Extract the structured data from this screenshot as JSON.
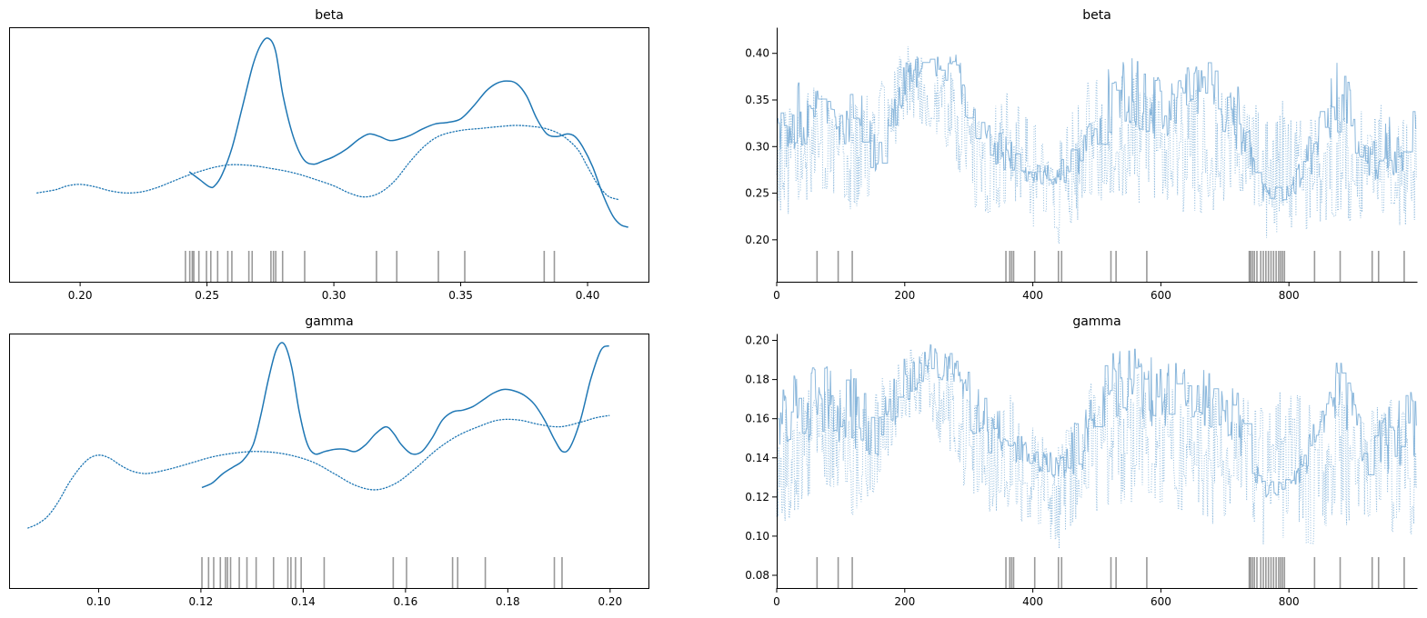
{
  "figure": {
    "type": "arviz trace plot",
    "background": "#ffffff",
    "density_color": "#1f77b4",
    "trace_color": "#7fb0d8",
    "rug_color": "#000000"
  },
  "chart_data": [
    {
      "type": "line",
      "panel": "kde-beta",
      "title": "beta",
      "xlabel": "",
      "ylabel": "",
      "xlim": [
        0.172,
        0.424
      ],
      "xticks": [
        0.2,
        0.25,
        0.3,
        0.35,
        0.4
      ],
      "xtick_labels": [
        "0.20",
        "0.25",
        "0.30",
        "0.35",
        "0.40"
      ],
      "yticks_visible": false,
      "grid": false,
      "legend": "none",
      "series": [
        {
          "style": "solid",
          "x": [
            0.243,
            0.247,
            0.251,
            0.253,
            0.256,
            0.26,
            0.264,
            0.268,
            0.271,
            0.274,
            0.277,
            0.28,
            0.284,
            0.288,
            0.292,
            0.296,
            0.3,
            0.305,
            0.31,
            0.314,
            0.318,
            0.322,
            0.326,
            0.33,
            0.335,
            0.34,
            0.345,
            0.35,
            0.355,
            0.36,
            0.364,
            0.368,
            0.372,
            0.376,
            0.38,
            0.384,
            0.388,
            0.392,
            0.395,
            0.398,
            0.402,
            0.406,
            0.41,
            0.413,
            0.416
          ],
          "y": [
            1.1,
            0.95,
            0.8,
            0.82,
            1.05,
            1.6,
            2.4,
            3.2,
            3.6,
            3.75,
            3.5,
            2.6,
            1.8,
            1.35,
            1.25,
            1.32,
            1.4,
            1.55,
            1.75,
            1.85,
            1.8,
            1.72,
            1.75,
            1.82,
            1.95,
            2.05,
            2.08,
            2.15,
            2.4,
            2.7,
            2.85,
            2.9,
            2.85,
            2.6,
            2.15,
            1.85,
            1.8,
            1.85,
            1.8,
            1.6,
            1.2,
            0.65,
            0.22,
            0.05,
            0.0
          ]
        },
        {
          "style": "dotted",
          "x": [
            0.183,
            0.19,
            0.195,
            0.2,
            0.206,
            0.212,
            0.218,
            0.224,
            0.23,
            0.236,
            0.242,
            0.248,
            0.254,
            0.26,
            0.268,
            0.276,
            0.284,
            0.292,
            0.3,
            0.306,
            0.312,
            0.318,
            0.324,
            0.33,
            0.336,
            0.342,
            0.35,
            0.358,
            0.366,
            0.372,
            0.378,
            0.384,
            0.39,
            0.396,
            0.4,
            0.404,
            0.408,
            0.412
          ],
          "y": [
            0.68,
            0.74,
            0.82,
            0.85,
            0.8,
            0.72,
            0.68,
            0.7,
            0.78,
            0.9,
            1.02,
            1.12,
            1.2,
            1.24,
            1.22,
            1.16,
            1.08,
            0.96,
            0.82,
            0.68,
            0.6,
            0.68,
            0.92,
            1.3,
            1.62,
            1.82,
            1.92,
            1.96,
            2.0,
            2.02,
            2.0,
            1.95,
            1.82,
            1.55,
            1.2,
            0.85,
            0.62,
            0.55
          ]
        }
      ],
      "rug_x": [
        0.2415,
        0.2432,
        0.2442,
        0.2448,
        0.2468,
        0.2498,
        0.2515,
        0.2542,
        0.2582,
        0.2598,
        0.2665,
        0.2678,
        0.2752,
        0.2762,
        0.2771,
        0.2798,
        0.2885,
        0.3168,
        0.3248,
        0.3412,
        0.3516,
        0.3829,
        0.3869
      ]
    },
    {
      "type": "line",
      "panel": "trace-beta",
      "title": "beta",
      "xlabel": "",
      "ylabel": "",
      "xlim": [
        0,
        1000
      ],
      "ylim": [
        0.155,
        0.428
      ],
      "xticks": [
        0,
        200,
        400,
        600,
        800
      ],
      "xtick_labels": [
        "0",
        "200",
        "400",
        "600",
        "800"
      ],
      "yticks": [
        0.2,
        0.25,
        0.3,
        0.35,
        0.4
      ],
      "ytick_labels": [
        "0.20",
        "0.25",
        "0.30",
        "0.35",
        "0.40"
      ],
      "grid": false,
      "legend": "none",
      "samples": 1000,
      "series": [
        {
          "style": "solid",
          "knots_x": [
            0,
            40,
            80,
            120,
            160,
            200,
            240,
            280,
            320,
            360,
            400,
            440,
            480,
            520,
            560,
            600,
            640,
            680,
            720,
            760,
            800,
            840,
            880,
            920,
            960,
            999
          ],
          "knots_y": [
            0.33,
            0.33,
            0.34,
            0.33,
            0.3,
            0.37,
            0.39,
            0.38,
            0.31,
            0.29,
            0.27,
            0.27,
            0.3,
            0.35,
            0.36,
            0.34,
            0.36,
            0.36,
            0.33,
            0.25,
            0.25,
            0.3,
            0.36,
            0.28,
            0.3,
            0.32
          ],
          "band": [
            0.035,
            0.04,
            0.04,
            0.04,
            0.03,
            0.02,
            0.015,
            0.02,
            0.035,
            0.02,
            0.01,
            0.01,
            0.035,
            0.04,
            0.04,
            0.035,
            0.03,
            0.03,
            0.035,
            0.01,
            0.008,
            0.03,
            0.04,
            0.02,
            0.035,
            0.035
          ],
          "min": 0.24,
          "max": 0.415
        },
        {
          "style": "dotted",
          "knots_x": [
            0,
            40,
            80,
            120,
            160,
            200,
            240,
            280,
            320,
            360,
            400,
            440,
            480,
            520,
            560,
            600,
            640,
            680,
            720,
            760,
            800,
            840,
            880,
            920,
            960,
            999
          ],
          "knots_y": [
            0.27,
            0.3,
            0.31,
            0.29,
            0.31,
            0.37,
            0.36,
            0.33,
            0.28,
            0.3,
            0.27,
            0.25,
            0.3,
            0.31,
            0.31,
            0.29,
            0.3,
            0.29,
            0.3,
            0.27,
            0.29,
            0.27,
            0.29,
            0.28,
            0.28,
            0.27
          ],
          "band": [
            0.06,
            0.06,
            0.06,
            0.06,
            0.06,
            0.04,
            0.04,
            0.05,
            0.06,
            0.06,
            0.06,
            0.06,
            0.07,
            0.07,
            0.07,
            0.07,
            0.07,
            0.07,
            0.06,
            0.07,
            0.08,
            0.07,
            0.07,
            0.06,
            0.07,
            0.07
          ],
          "min": 0.19,
          "max": 0.41
        }
      ],
      "rug_x": [
        63,
        96,
        118,
        358,
        364,
        367,
        370,
        403,
        440,
        445,
        522,
        530,
        578,
        738,
        740,
        743,
        746,
        750,
        756,
        760,
        764,
        768,
        772,
        776,
        780,
        784,
        787,
        790,
        793,
        840,
        880,
        930,
        940,
        980
      ]
    },
    {
      "type": "line",
      "panel": "kde-gamma",
      "title": "gamma",
      "xlabel": "",
      "ylabel": "",
      "xlim": [
        0.0825,
        0.2075
      ],
      "xticks": [
        0.1,
        0.12,
        0.14,
        0.16,
        0.18,
        0.2
      ],
      "xtick_labels": [
        "0.10",
        "0.12",
        "0.14",
        "0.16",
        "0.18",
        "0.20"
      ],
      "yticks_visible": false,
      "grid": false,
      "legend": "none",
      "series": [
        {
          "style": "solid",
          "x": [
            0.1202,
            0.1222,
            0.1242,
            0.1262,
            0.1282,
            0.1302,
            0.1317,
            0.1332,
            0.1347,
            0.1362,
            0.1377,
            0.1392,
            0.1407,
            0.1422,
            0.1442,
            0.1462,
            0.1482,
            0.1502,
            0.1522,
            0.1542,
            0.1562,
            0.1577,
            0.1592,
            0.1612,
            0.1632,
            0.1652,
            0.1672,
            0.1692,
            0.1712,
            0.1732,
            0.1752,
            0.1772,
            0.1792,
            0.1812,
            0.1832,
            0.1852,
            0.1872,
            0.1892,
            0.1907,
            0.1922,
            0.1942,
            0.1962,
            0.1982,
            0.1998
          ],
          "y": [
            0.9,
            1.0,
            1.2,
            1.35,
            1.5,
            1.85,
            2.5,
            3.3,
            3.95,
            4.1,
            3.6,
            2.6,
            1.9,
            1.65,
            1.7,
            1.75,
            1.75,
            1.7,
            1.85,
            2.1,
            2.25,
            2.1,
            1.85,
            1.65,
            1.7,
            2.0,
            2.4,
            2.58,
            2.62,
            2.7,
            2.85,
            3.0,
            3.08,
            3.05,
            2.95,
            2.75,
            2.4,
            1.95,
            1.7,
            1.8,
            2.4,
            3.3,
            3.95,
            4.05
          ]
        },
        {
          "style": "dotted",
          "x": [
            0.0862,
            0.0882,
            0.0902,
            0.0922,
            0.0942,
            0.0962,
            0.0982,
            0.1002,
            0.1022,
            0.1042,
            0.1062,
            0.1082,
            0.1102,
            0.1142,
            0.1182,
            0.1222,
            0.1262,
            0.1302,
            0.1342,
            0.1382,
            0.1422,
            0.1462,
            0.1502,
            0.1542,
            0.1582,
            0.1622,
            0.1662,
            0.1702,
            0.1742,
            0.1782,
            0.1822,
            0.1862,
            0.1902,
            0.1942,
            0.1972,
            0.1998
          ],
          "y": [
            0.0,
            0.1,
            0.28,
            0.6,
            1.0,
            1.32,
            1.55,
            1.62,
            1.55,
            1.4,
            1.28,
            1.22,
            1.22,
            1.32,
            1.45,
            1.58,
            1.66,
            1.7,
            1.68,
            1.6,
            1.45,
            1.2,
            0.95,
            0.85,
            1.0,
            1.35,
            1.75,
            2.05,
            2.25,
            2.4,
            2.4,
            2.3,
            2.25,
            2.35,
            2.45,
            2.5
          ]
        }
      ],
      "rug_x": [
        0.1202,
        0.1215,
        0.1225,
        0.1238,
        0.1248,
        0.1252,
        0.1258,
        0.1275,
        0.129,
        0.1308,
        0.1342,
        0.137,
        0.1376,
        0.1385,
        0.1396,
        0.1441,
        0.1576,
        0.1602,
        0.1692,
        0.1702,
        0.1756,
        0.1891,
        0.1906
      ]
    },
    {
      "type": "line",
      "panel": "trace-gamma",
      "title": "gamma",
      "xlabel": "",
      "ylabel": "",
      "xlim": [
        0,
        1000
      ],
      "ylim": [
        0.0735,
        0.2035
      ],
      "xticks": [
        0,
        200,
        400,
        600,
        800
      ],
      "xtick_labels": [
        "0",
        "200",
        "400",
        "600",
        "800"
      ],
      "yticks": [
        0.08,
        0.1,
        0.12,
        0.14,
        0.16,
        0.18,
        0.2
      ],
      "ytick_labels": [
        "0.08",
        "0.10",
        "0.12",
        "0.14",
        "0.16",
        "0.18",
        "0.20"
      ],
      "grid": false,
      "legend": "none",
      "samples": 1000,
      "series": [
        {
          "style": "solid",
          "knots_x": [
            0,
            40,
            80,
            120,
            160,
            200,
            240,
            280,
            320,
            360,
            400,
            440,
            480,
            520,
            560,
            600,
            640,
            680,
            720,
            760,
            800,
            840,
            880,
            920,
            960,
            999
          ],
          "knots_y": [
            0.16,
            0.165,
            0.17,
            0.165,
            0.15,
            0.18,
            0.19,
            0.185,
            0.155,
            0.15,
            0.14,
            0.135,
            0.15,
            0.175,
            0.18,
            0.17,
            0.175,
            0.17,
            0.16,
            0.125,
            0.125,
            0.15,
            0.18,
            0.14,
            0.15,
            0.16
          ],
          "band": [
            0.018,
            0.02,
            0.02,
            0.02,
            0.015,
            0.012,
            0.008,
            0.01,
            0.018,
            0.012,
            0.006,
            0.006,
            0.018,
            0.02,
            0.018,
            0.018,
            0.015,
            0.015,
            0.018,
            0.006,
            0.004,
            0.015,
            0.018,
            0.01,
            0.018,
            0.018
          ],
          "min": 0.12,
          "max": 0.199
        },
        {
          "style": "dotted",
          "knots_x": [
            0,
            40,
            80,
            120,
            160,
            200,
            240,
            280,
            320,
            360,
            400,
            440,
            480,
            520,
            560,
            600,
            640,
            680,
            720,
            760,
            800,
            840,
            880,
            920,
            960,
            999
          ],
          "knots_y": [
            0.13,
            0.145,
            0.15,
            0.14,
            0.15,
            0.18,
            0.175,
            0.16,
            0.135,
            0.145,
            0.13,
            0.12,
            0.145,
            0.15,
            0.15,
            0.14,
            0.145,
            0.14,
            0.145,
            0.13,
            0.14,
            0.13,
            0.14,
            0.135,
            0.135,
            0.13
          ],
          "band": [
            0.03,
            0.03,
            0.03,
            0.03,
            0.03,
            0.02,
            0.02,
            0.025,
            0.03,
            0.03,
            0.03,
            0.03,
            0.035,
            0.035,
            0.035,
            0.035,
            0.035,
            0.035,
            0.03,
            0.035,
            0.04,
            0.035,
            0.035,
            0.03,
            0.035,
            0.035
          ],
          "min": 0.092,
          "max": 0.199
        }
      ],
      "rug_x": [
        63,
        96,
        118,
        358,
        364,
        367,
        370,
        403,
        440,
        445,
        522,
        530,
        578,
        738,
        740,
        743,
        746,
        750,
        756,
        760,
        764,
        768,
        772,
        776,
        780,
        784,
        787,
        790,
        793,
        840,
        880,
        930,
        940,
        980
      ]
    }
  ]
}
